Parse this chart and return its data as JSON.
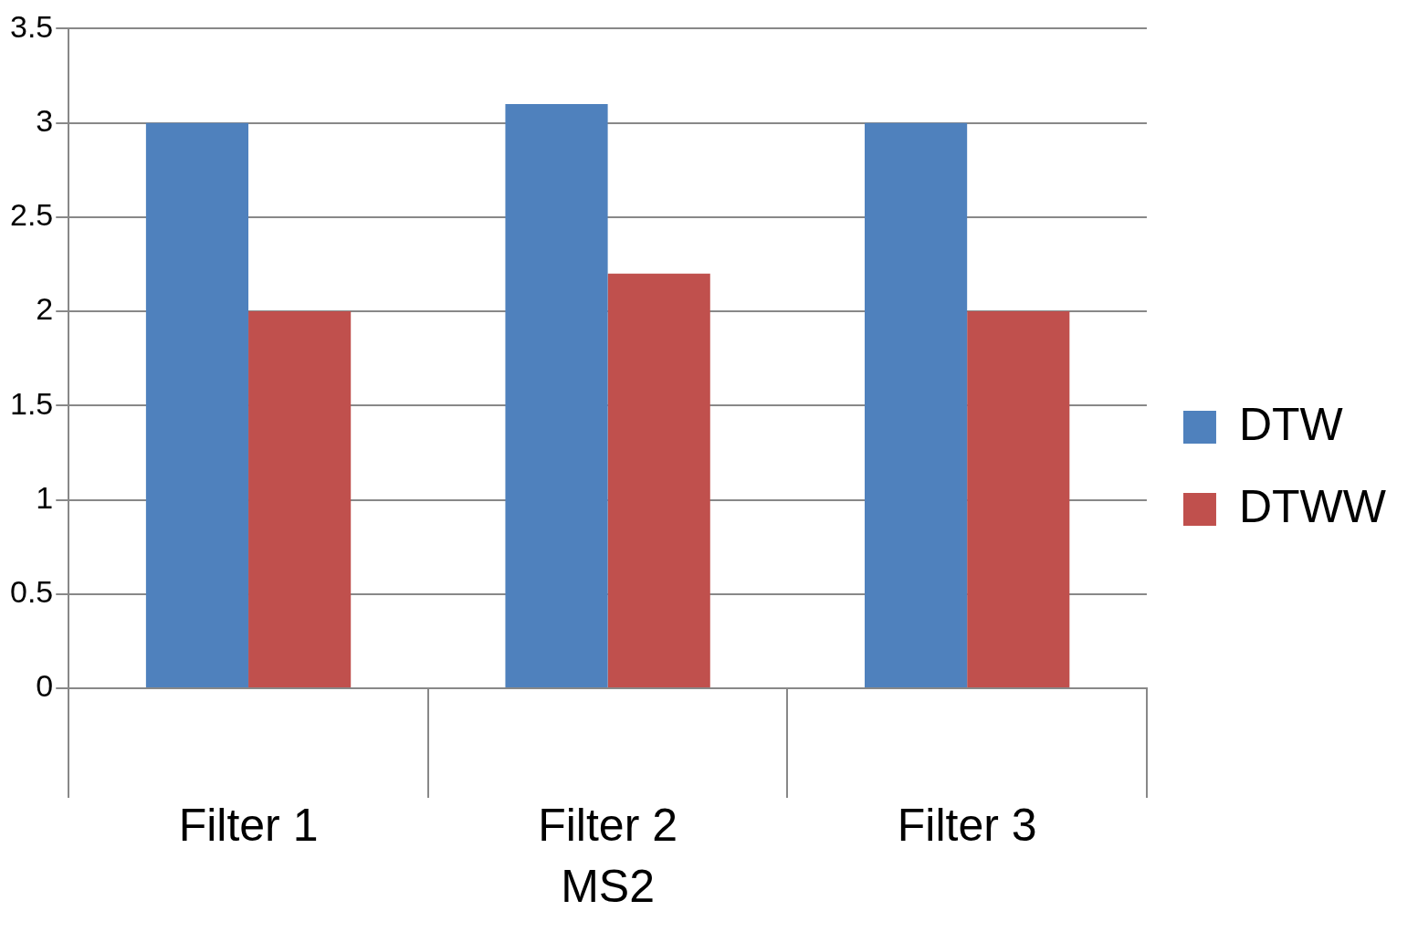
{
  "chart_data": {
    "type": "bar",
    "categories": [
      "Filter 1",
      "Filter 2",
      "Filter 3"
    ],
    "xlabel": "MS2",
    "series": [
      {
        "name": "DTW",
        "color": "#4f81bd",
        "values": [
          3,
          3.1,
          3
        ]
      },
      {
        "name": "DTWW",
        "color": "#c0504d",
        "values": [
          2,
          2.2,
          2
        ]
      }
    ],
    "ylim": [
      0,
      3.5
    ],
    "yticks": [
      0,
      0.5,
      1,
      1.5,
      2,
      2.5,
      3,
      3.5
    ],
    "grid": "y",
    "legend": "right"
  }
}
